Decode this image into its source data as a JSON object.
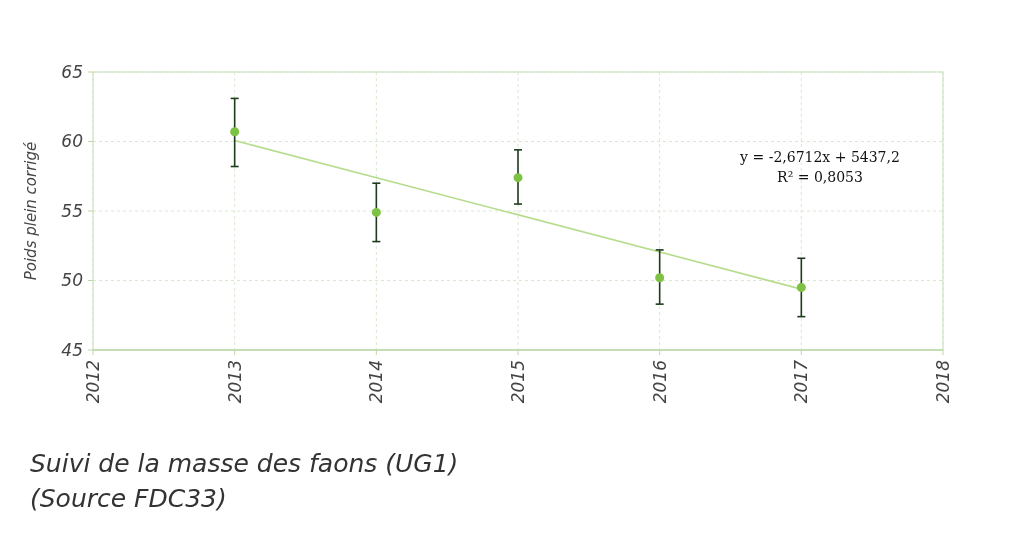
{
  "chart_data": {
    "type": "scatter",
    "title": "Suivi de la masse des faons (UG1)",
    "ylabel": "Poids plein corrigé",
    "annotations": [
      "y = -2,6712x + 5437,2",
      "R² = 0,8053",
      "(Source FDC33)"
    ],
    "xlim": [
      2012,
      2018
    ],
    "xticks": [
      2012,
      2013,
      2014,
      2015,
      2016,
      2017,
      2018
    ],
    "ylim": [
      45,
      65
    ],
    "yticks": [
      45,
      50,
      55,
      60,
      65
    ],
    "grid": true,
    "marker": "circle",
    "series": [
      {
        "type": "line",
        "marker": "none",
        "color": "#b5dc8c",
        "x": [
          2013,
          2017
        ],
        "values": [
          60.07,
          49.38
        ]
      },
      {
        "color": "#7dc242",
        "x": [
          2013,
          2014,
          2015,
          2016,
          2017
        ],
        "values": [
          60.7,
          54.9,
          57.4,
          50.2,
          49.5
        ],
        "errors": [
          [
            58.2,
            63.1
          ],
          [
            52.8,
            57.0
          ],
          [
            55.5,
            59.4
          ],
          [
            48.3,
            52.2
          ],
          [
            47.4,
            51.6
          ]
        ]
      }
    ]
  }
}
